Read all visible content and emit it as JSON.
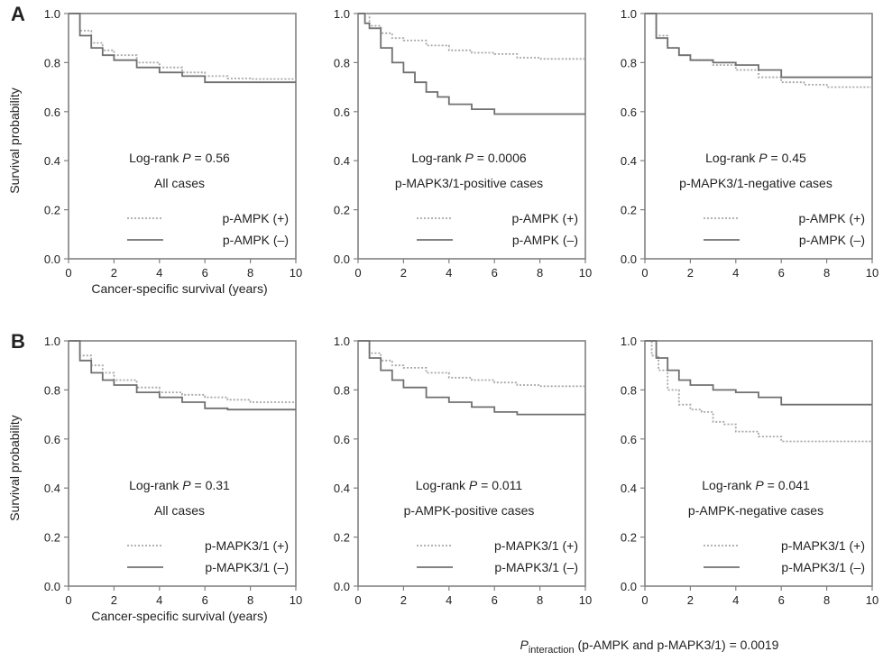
{
  "figure": {
    "interaction_text": {
      "main": "P",
      "sub": "interaction",
      "rest": " (p-AMPK and p-MAPK3/1) = 0.0019"
    }
  },
  "chart_data": [
    {
      "type": "line",
      "row_label": "A",
      "ylabel": "Survival probability",
      "xlabel": "Cancer-specific survival (years)",
      "xlim": [
        0,
        10
      ],
      "ylim": [
        0,
        1
      ],
      "xticks": [
        "0",
        "2",
        "4",
        "6",
        "8",
        "10"
      ],
      "yticks": [
        "0.0",
        "0.2",
        "0.4",
        "0.6",
        "0.8",
        "1.0"
      ],
      "test": "Log-rank",
      "p_symbol": "P",
      "p_value": " = 0.56",
      "subset": "All cases",
      "series": [
        {
          "name": "p-AMPK (+)",
          "style": "dotted",
          "color": "#a8a8a8",
          "x": [
            0,
            0.5,
            1,
            1.5,
            2,
            3,
            4,
            5,
            6,
            7,
            8,
            10
          ],
          "y": [
            1.0,
            0.93,
            0.88,
            0.85,
            0.83,
            0.8,
            0.78,
            0.76,
            0.745,
            0.735,
            0.733,
            0.733
          ]
        },
        {
          "name": "p-AMPK (–)",
          "style": "solid",
          "color": "#707070",
          "x": [
            0,
            0.5,
            1,
            1.5,
            2,
            3,
            4,
            5,
            6,
            7,
            8,
            10
          ],
          "y": [
            1.0,
            0.91,
            0.86,
            0.83,
            0.81,
            0.78,
            0.76,
            0.745,
            0.72,
            0.72,
            0.72,
            0.72
          ]
        }
      ]
    },
    {
      "type": "line",
      "row_label": "",
      "ylabel": "",
      "xlabel": "",
      "xlim": [
        0,
        10
      ],
      "ylim": [
        0,
        1
      ],
      "xticks": [
        "0",
        "2",
        "4",
        "6",
        "8",
        "10"
      ],
      "yticks": [
        "0.0",
        "0.2",
        "0.4",
        "0.6",
        "0.8",
        "1.0"
      ],
      "test": "Log-rank",
      "p_symbol": "P",
      "p_value": " = 0.0006",
      "subset": "p-MAPK3/1-positive cases",
      "series": [
        {
          "name": "p-AMPK (+)",
          "style": "dotted",
          "color": "#a8a8a8",
          "x": [
            0,
            0.5,
            1,
            1.5,
            2,
            3,
            4,
            5,
            6,
            7,
            8,
            10
          ],
          "y": [
            1.0,
            0.95,
            0.92,
            0.9,
            0.89,
            0.87,
            0.85,
            0.84,
            0.835,
            0.82,
            0.815,
            0.812
          ]
        },
        {
          "name": "p-AMPK (–)",
          "style": "solid",
          "color": "#707070",
          "x": [
            0,
            0.3,
            0.5,
            1,
            1.5,
            2,
            2.5,
            3,
            3.5,
            4,
            5,
            6,
            10
          ],
          "y": [
            1.0,
            0.96,
            0.94,
            0.86,
            0.8,
            0.76,
            0.72,
            0.68,
            0.66,
            0.63,
            0.61,
            0.59,
            0.59
          ]
        }
      ]
    },
    {
      "type": "line",
      "row_label": "",
      "ylabel": "",
      "xlabel": "",
      "xlim": [
        0,
        10
      ],
      "ylim": [
        0,
        1
      ],
      "xticks": [
        "0",
        "2",
        "4",
        "6",
        "8",
        "10"
      ],
      "yticks": [
        "0.0",
        "0.2",
        "0.4",
        "0.6",
        "0.8",
        "1.0"
      ],
      "test": "Log-rank",
      "p_symbol": "P",
      "p_value": " = 0.45",
      "subset": "p-MAPK3/1-negative cases",
      "series": [
        {
          "name": "p-AMPK (+)",
          "style": "dotted",
          "color": "#a8a8a8",
          "x": [
            0,
            0.5,
            1,
            1.5,
            2,
            3,
            4,
            5,
            6,
            7,
            8,
            10
          ],
          "y": [
            1.0,
            0.91,
            0.86,
            0.83,
            0.81,
            0.79,
            0.77,
            0.74,
            0.72,
            0.71,
            0.7,
            0.7
          ]
        },
        {
          "name": "p-AMPK (–)",
          "style": "solid",
          "color": "#707070",
          "x": [
            0,
            0.5,
            1,
            1.5,
            2,
            3,
            4,
            5,
            6,
            7,
            8,
            10
          ],
          "y": [
            1.0,
            0.9,
            0.86,
            0.83,
            0.81,
            0.8,
            0.79,
            0.77,
            0.74,
            0.74,
            0.74,
            0.74
          ]
        }
      ]
    },
    {
      "type": "line",
      "row_label": "B",
      "ylabel": "Survival probability",
      "xlabel": "Cancer-specific survival (years)",
      "xlim": [
        0,
        10
      ],
      "ylim": [
        0,
        1
      ],
      "xticks": [
        "0",
        "2",
        "4",
        "6",
        "8",
        "10"
      ],
      "yticks": [
        "0.0",
        "0.2",
        "0.4",
        "0.6",
        "0.8",
        "1.0"
      ],
      "test": "Log-rank",
      "p_symbol": "P",
      "p_value": " = 0.31",
      "subset": "All cases",
      "series": [
        {
          "name": "p-MAPK3/1 (+)",
          "style": "dotted",
          "color": "#a8a8a8",
          "x": [
            0,
            0.5,
            1,
            1.5,
            2,
            3,
            4,
            5,
            6,
            7,
            8,
            10
          ],
          "y": [
            1.0,
            0.94,
            0.9,
            0.87,
            0.84,
            0.81,
            0.79,
            0.78,
            0.77,
            0.76,
            0.75,
            0.75
          ]
        },
        {
          "name": "p-MAPK3/1 (–)",
          "style": "solid",
          "color": "#707070",
          "x": [
            0,
            0.5,
            1,
            1.5,
            2,
            3,
            4,
            5,
            6,
            7,
            8,
            10
          ],
          "y": [
            1.0,
            0.92,
            0.87,
            0.84,
            0.82,
            0.79,
            0.77,
            0.75,
            0.725,
            0.72,
            0.72,
            0.72
          ]
        }
      ]
    },
    {
      "type": "line",
      "row_label": "",
      "ylabel": "",
      "xlabel": "",
      "xlim": [
        0,
        10
      ],
      "ylim": [
        0,
        1
      ],
      "xticks": [
        "0",
        "2",
        "4",
        "6",
        "8",
        "10"
      ],
      "yticks": [
        "0.0",
        "0.2",
        "0.4",
        "0.6",
        "0.8",
        "1.0"
      ],
      "test": "Log-rank",
      "p_symbol": "P",
      "p_value": " = 0.011",
      "subset": "p-AMPK-positive cases",
      "series": [
        {
          "name": "p-MAPK3/1 (+)",
          "style": "dotted",
          "color": "#a8a8a8",
          "x": [
            0,
            0.5,
            1,
            1.5,
            2,
            3,
            4,
            5,
            6,
            7,
            8,
            10
          ],
          "y": [
            1.0,
            0.95,
            0.92,
            0.9,
            0.89,
            0.87,
            0.85,
            0.84,
            0.83,
            0.82,
            0.815,
            0.812
          ]
        },
        {
          "name": "p-MAPK3/1 (–)",
          "style": "solid",
          "color": "#707070",
          "x": [
            0,
            0.5,
            1,
            1.5,
            2,
            3,
            4,
            5,
            6,
            7,
            8,
            10
          ],
          "y": [
            1.0,
            0.93,
            0.88,
            0.84,
            0.81,
            0.77,
            0.75,
            0.73,
            0.71,
            0.7,
            0.7,
            0.7
          ]
        }
      ]
    },
    {
      "type": "line",
      "row_label": "",
      "ylabel": "",
      "xlabel": "",
      "xlim": [
        0,
        10
      ],
      "ylim": [
        0,
        1
      ],
      "xticks": [
        "0",
        "2",
        "4",
        "6",
        "8",
        "10"
      ],
      "yticks": [
        "0.0",
        "0.2",
        "0.4",
        "0.6",
        "0.8",
        "1.0"
      ],
      "test": "Log-rank",
      "p_symbol": "P",
      "p_value": " = 0.041",
      "subset": "p-AMPK-negative cases",
      "series": [
        {
          "name": "p-MAPK3/1 (+)",
          "style": "dotted",
          "color": "#a8a8a8",
          "x": [
            0,
            0.3,
            0.6,
            1,
            1.5,
            2,
            2.5,
            3,
            3.5,
            4,
            5,
            6,
            10
          ],
          "y": [
            1.0,
            0.94,
            0.88,
            0.8,
            0.74,
            0.72,
            0.71,
            0.67,
            0.66,
            0.63,
            0.61,
            0.59,
            0.59
          ]
        },
        {
          "name": "p-MAPK3/1 (–)",
          "style": "solid",
          "color": "#707070",
          "x": [
            0,
            0.5,
            1,
            1.5,
            2,
            3,
            4,
            5,
            6,
            7,
            8,
            10
          ],
          "y": [
            1.0,
            0.93,
            0.88,
            0.84,
            0.82,
            0.8,
            0.79,
            0.77,
            0.74,
            0.74,
            0.74,
            0.74
          ]
        }
      ]
    }
  ]
}
